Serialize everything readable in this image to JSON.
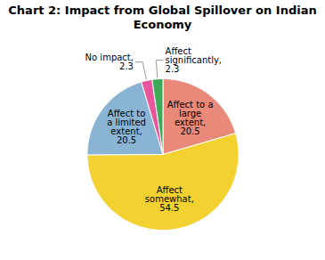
{
  "chart_data": {
    "type": "pie",
    "title": "Chart 2: Impact from Global Spillover on Indian Economy",
    "categories": [
      "Affect to a\nlarge\nextent,\n20.5",
      "Affect\nsomewhat,\n54.5",
      "Affect to\na limited\nextent,\n20.5",
      "No impact,\n2.3",
      "Affect\nsignificantly,\n2.3"
    ],
    "values": [
      20.5,
      54.5,
      20.5,
      2.3,
      2.3
    ],
    "colors": [
      "#E8897A",
      "#F2D130",
      "#89B4D4",
      "#E8559A",
      "#3DAA5A"
    ]
  }
}
